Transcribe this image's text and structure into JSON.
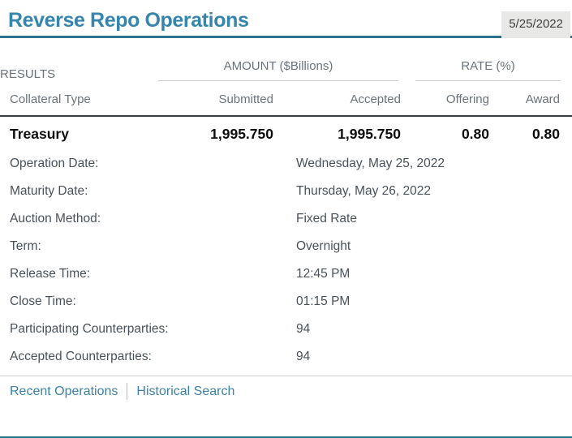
{
  "page": {
    "title": "Reverse Repo Operations",
    "date": "5/25/2022"
  },
  "results_table": {
    "section_label": "RESULTS",
    "group_headers": [
      {
        "label": "AMOUNT ($Billions)"
      },
      {
        "label": "RATE (%)"
      }
    ],
    "columns": [
      "Collateral Type",
      "Submitted",
      "Accepted",
      "Offering",
      "Award"
    ],
    "rows": [
      {
        "collateral_type": "Treasury",
        "submitted": "1,995.750",
        "accepted": "1,995.750",
        "offering": "0.80",
        "award": "0.80"
      }
    ]
  },
  "details": [
    {
      "label": "Operation Date:",
      "value": "Wednesday, May 25, 2022"
    },
    {
      "label": "Maturity Date:",
      "value": "Thursday, May 26, 2022"
    },
    {
      "label": "Auction Method:",
      "value": "Fixed Rate"
    },
    {
      "label": "Term:",
      "value": "Overnight"
    },
    {
      "label": "Release Time:",
      "value": "12:45 PM"
    },
    {
      "label": "Close Time:",
      "value": "01:15 PM"
    },
    {
      "label": "Participating Counterparties:",
      "value": "94"
    },
    {
      "label": "Accepted Counterparties:",
      "value": "94"
    }
  ],
  "footer": {
    "links": [
      "Recent Operations",
      "Historical Search"
    ]
  },
  "colors": {
    "title_accent": "#3585ac",
    "header_rule": "#2d7191",
    "link_color": "#3a82a8",
    "table_header_text": "#6a737c",
    "detail_text": "#49525a",
    "date_box_bg": "#e8e8e6",
    "dark_rule": "#3a3e41"
  }
}
